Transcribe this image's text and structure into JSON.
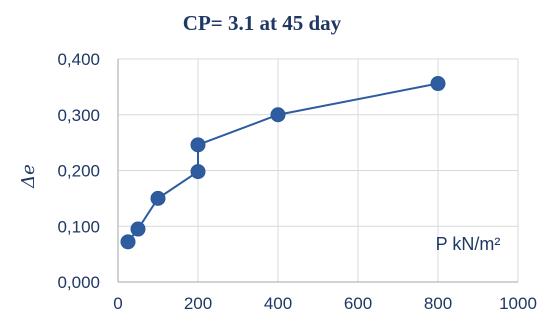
{
  "chart_data": {
    "type": "scatter",
    "title": "CP= 3.1 at 45 day",
    "xlabel": "P kN/m²",
    "ylabel": "Δe",
    "xlim": [
      0,
      1000
    ],
    "ylim": [
      0,
      0.4
    ],
    "x_ticks": [
      "0",
      "200",
      "400",
      "600",
      "800",
      "1000"
    ],
    "y_ticks": [
      "0,000",
      "0,100",
      "0,200",
      "0,300",
      "0,400"
    ],
    "grid": true,
    "series": [
      {
        "x": [
          25,
          50,
          100,
          200,
          200,
          400,
          800
        ],
        "y": [
          0.072,
          0.095,
          0.15,
          0.198,
          0.246,
          0.3,
          0.356
        ]
      }
    ],
    "colors": {
      "series": "#2e5c9e",
      "marker_edge": "#2b579a",
      "text": "#1f3864"
    }
  }
}
